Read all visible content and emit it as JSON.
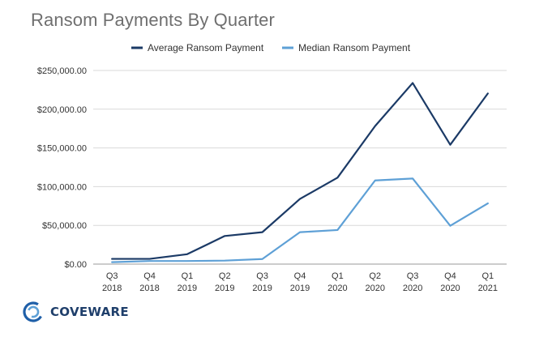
{
  "chart_data": {
    "type": "line",
    "title": "Ransom Payments By Quarter",
    "categories": [
      [
        "Q3",
        "2018"
      ],
      [
        "Q4",
        "2018"
      ],
      [
        "Q1",
        "2019"
      ],
      [
        "Q2",
        "2019"
      ],
      [
        "Q3",
        "2019"
      ],
      [
        "Q4",
        "2019"
      ],
      [
        "Q1",
        "2020"
      ],
      [
        "Q2",
        "2020"
      ],
      [
        "Q3",
        "2020"
      ],
      [
        "Q4",
        "2020"
      ],
      [
        "Q1",
        "2021"
      ]
    ],
    "series": [
      {
        "name": "Average Ransom Payment",
        "color": "#1b3a66",
        "values": [
          6733,
          6733,
          12762,
          36295,
          41198,
          84116,
          111605,
          178254,
          233817,
          154108,
          220298
        ]
      },
      {
        "name": "Median Ransom Payment",
        "color": "#5ea0d6",
        "values": [
          2500,
          4000,
          4000,
          4500,
          6500,
          41179,
          44021,
          108000,
          110532,
          49450,
          78398
        ]
      }
    ],
    "ylim": [
      0,
      250000
    ],
    "yticks": [
      0,
      50000,
      100000,
      150000,
      200000,
      250000
    ],
    "ytick_labels": [
      "$0.00",
      "$50,000.00",
      "$100,000.00",
      "$150,000.00",
      "$200,000.00",
      "$250,000.00"
    ],
    "grid": true,
    "legend_position": "top-center"
  },
  "logo": {
    "text": "COVEWARE"
  }
}
